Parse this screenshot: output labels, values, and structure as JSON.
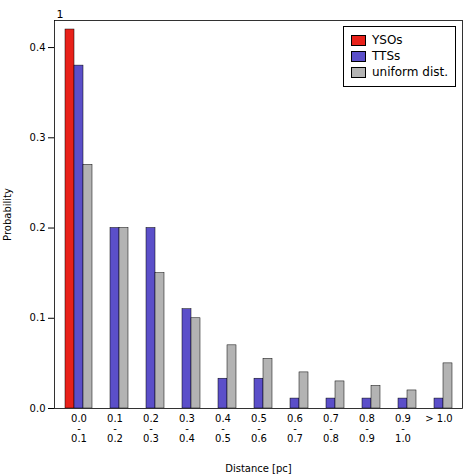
{
  "chart_data": {
    "type": "bar",
    "categories": [
      "0.0\n-\n0.1",
      "0.1\n-\n0.2",
      "0.2\n-\n0.3",
      "0.3\n-\n0.4",
      "0.4\n-\n0.5",
      "0.5\n-\n0.6",
      "0.6\n-\n0.7",
      "0.7\n-\n0.8",
      "0.8\n-\n0.9",
      "0.9\n-\n1.0",
      "> 1.0"
    ],
    "series": [
      {
        "name": "YSOs",
        "color": "#e8211a",
        "values": [
          0.42,
          0.0,
          0.0,
          0.0,
          0.0,
          0.0,
          0.0,
          0.0,
          0.0,
          0.0,
          0.0
        ]
      },
      {
        "name": "TTSs",
        "color": "#5b4fc9",
        "values": [
          0.38,
          0.2,
          0.2,
          0.11,
          0.033,
          0.033,
          0.011,
          0.011,
          0.011,
          0.011,
          0.011
        ]
      },
      {
        "name": "uniform dist.",
        "color": "#b3b3b3",
        "values": [
          0.27,
          0.2,
          0.15,
          0.1,
          0.07,
          0.055,
          0.04,
          0.03,
          0.025,
          0.02,
          0.05
        ]
      }
    ],
    "xlabel": "Distance [pc]",
    "ylabel": "Probability",
    "ylim": [
      0,
      0.43
    ],
    "yticks": [
      {
        "value": 0,
        "label": "0.0"
      },
      0.1,
      0.2,
      0.3,
      0.4
    ],
    "legend": "upper right",
    "grid": false,
    "annotations": [
      {
        "text": "1"
      }
    ]
  }
}
